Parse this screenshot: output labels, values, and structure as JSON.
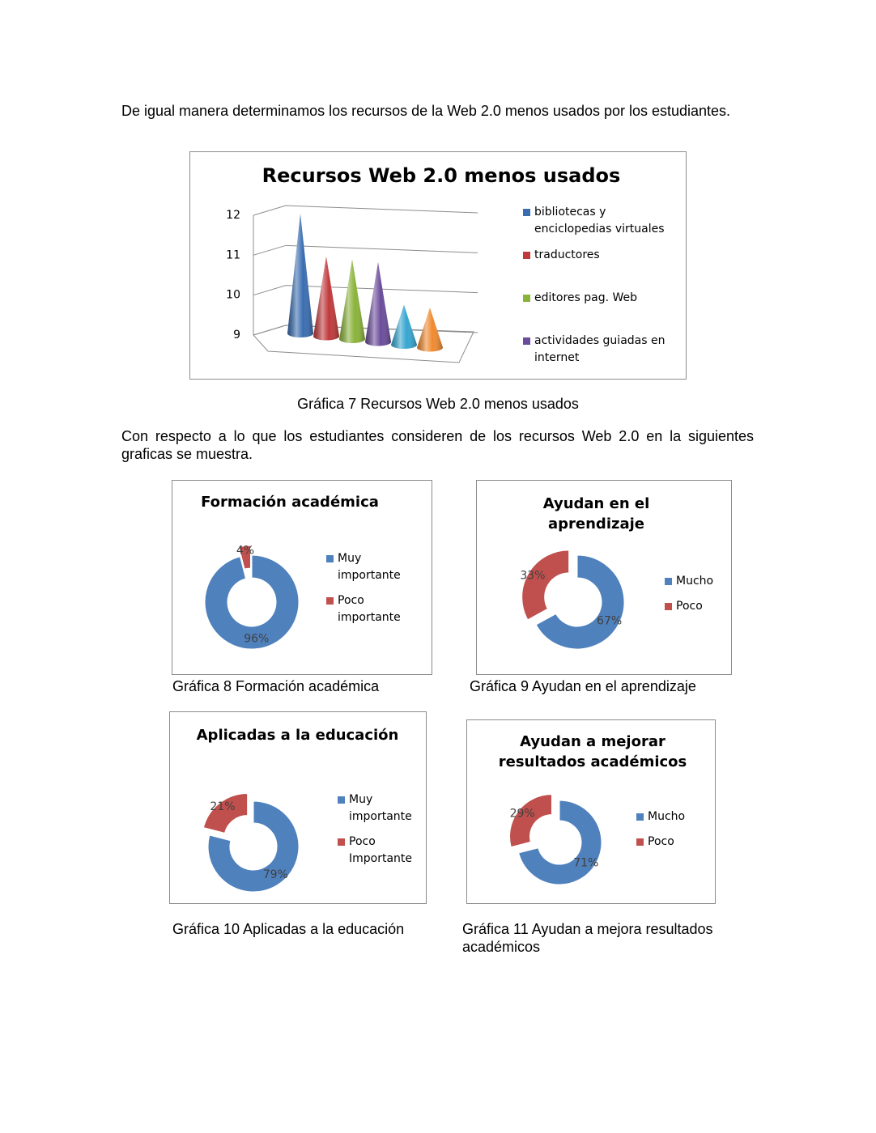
{
  "paragraphs": [
    "De igual manera determinamos los recursos de la Web 2.0 menos usados por los estudiantes.",
    "Con respecto a lo que los estudiantes consideren de los recursos Web 2.0 en la siguientes graficas se muestra."
  ],
  "captions": [
    "Gráfica 7 Recursos Web 2.0 menos usados",
    "Gráfica 8 Formación académica",
    "Gráfica 9 Ayudan en el aprendizaje",
    "Gráfica 10 Aplicadas a la educación",
    "Gráfica 11 Ayudan a mejora resultados académicos"
  ],
  "chart_data": [
    {
      "type": "cone",
      "title": "Recursos Web 2.0 menos usados",
      "ylim": [
        9,
        12
      ],
      "yticks": [
        9,
        10,
        11,
        12
      ],
      "grid": true,
      "series": [
        {
          "name": "bibliotecas y enciclopedias virtuales",
          "color": "#3a6db0",
          "values": [
            12
          ]
        },
        {
          "name": "traductores",
          "color": "#c0393b",
          "values": [
            11
          ]
        },
        {
          "name": "editores pag. Web",
          "color": "#8ab33a",
          "values": [
            11
          ]
        },
        {
          "name": "actividades guiadas en internet",
          "color": "#6b4c9a",
          "values": [
            11
          ]
        },
        {
          "name": null,
          "color": "#36a6d0",
          "values": [
            10
          ]
        },
        {
          "name": null,
          "color": "#f08a30",
          "values": [
            10
          ]
        }
      ]
    },
    {
      "type": "donut",
      "title": "Formación académica",
      "categories": [
        "Muy importante",
        "Poco importante"
      ],
      "values": [
        96,
        4
      ],
      "value_labels": [
        "96%",
        "4%"
      ],
      "colors": [
        "#4f81bd",
        "#c0504d"
      ]
    },
    {
      "type": "donut",
      "title": "Ayudan en el aprendizaje",
      "categories": [
        "Mucho",
        "Poco"
      ],
      "values": [
        67,
        33
      ],
      "value_labels": [
        "67%",
        "33%"
      ],
      "colors": [
        "#4f81bd",
        "#c0504d"
      ]
    },
    {
      "type": "donut",
      "title": "Aplicadas a la educación",
      "categories": [
        "Muy importante",
        "Poco Importante"
      ],
      "values": [
        79,
        21
      ],
      "value_labels": [
        "79%",
        "21%"
      ],
      "colors": [
        "#4f81bd",
        "#c0504d"
      ]
    },
    {
      "type": "donut",
      "title": "Ayudan a mejorar resultados académicos",
      "categories": [
        "Mucho",
        "Poco"
      ],
      "values": [
        71,
        29
      ],
      "value_labels": [
        "71%",
        "29%"
      ],
      "colors": [
        "#4f81bd",
        "#c0504d"
      ]
    }
  ]
}
